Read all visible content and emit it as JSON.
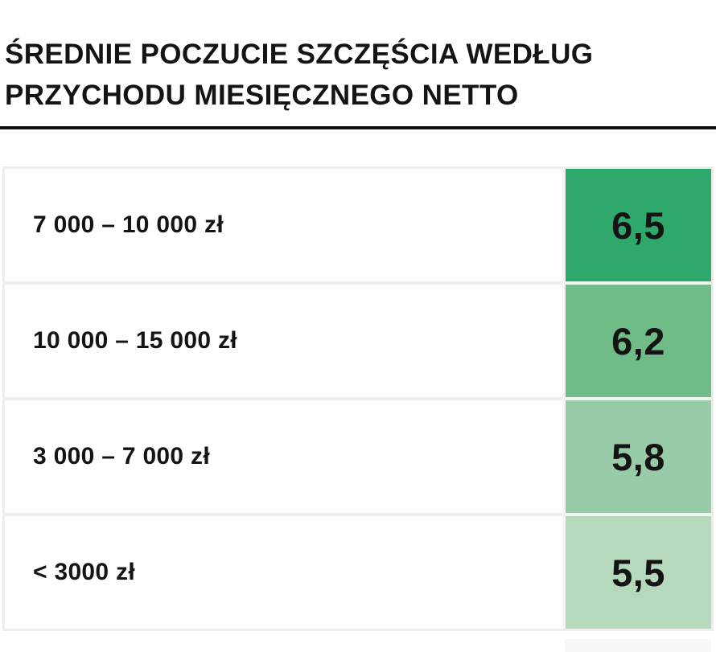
{
  "title": {
    "line1": "ŚREDNIE POCZUCIE SZCZĘŚCIA WEDŁUG",
    "line2": "PRZYCHODU MIESIĘCZNEGO NETTO"
  },
  "chart_data": {
    "type": "table",
    "title": "Średnie poczucie szczęścia według przychodu miesięcznego netto",
    "categories": [
      "7 000 – 10 000 zł",
      "10 000 – 15 000 zł",
      "3 000 – 7 000 zł",
      "< 3000 zł"
    ],
    "values": [
      6.5,
      6.2,
      5.8,
      5.5
    ],
    "rows": [
      {
        "label": "7 000 – 10 000 zł",
        "value": 6.5,
        "value_label": "6,5",
        "color": "#2ea96b"
      },
      {
        "label": "10 000 – 15 000 zł",
        "value": 6.2,
        "value_label": "6,2",
        "color": "#70bc86"
      },
      {
        "label": "3 000 – 7 000 zł",
        "value": 5.8,
        "value_label": "5,8",
        "color": "#98cba7"
      },
      {
        "label": "< 3000 zł",
        "value": 5.5,
        "value_label": "5,5",
        "color": "#b6d8bd"
      }
    ],
    "value_format": "comma-decimal",
    "legend": "none",
    "layout": "horizontal rows, label left, colored score cell right"
  },
  "colors": {
    "text": "#141414",
    "divider": "#101010",
    "table_border": "#ededed",
    "value_cell_left_border": "#f2f6f3",
    "value_cell_row_separator": "#eef4ef"
  }
}
